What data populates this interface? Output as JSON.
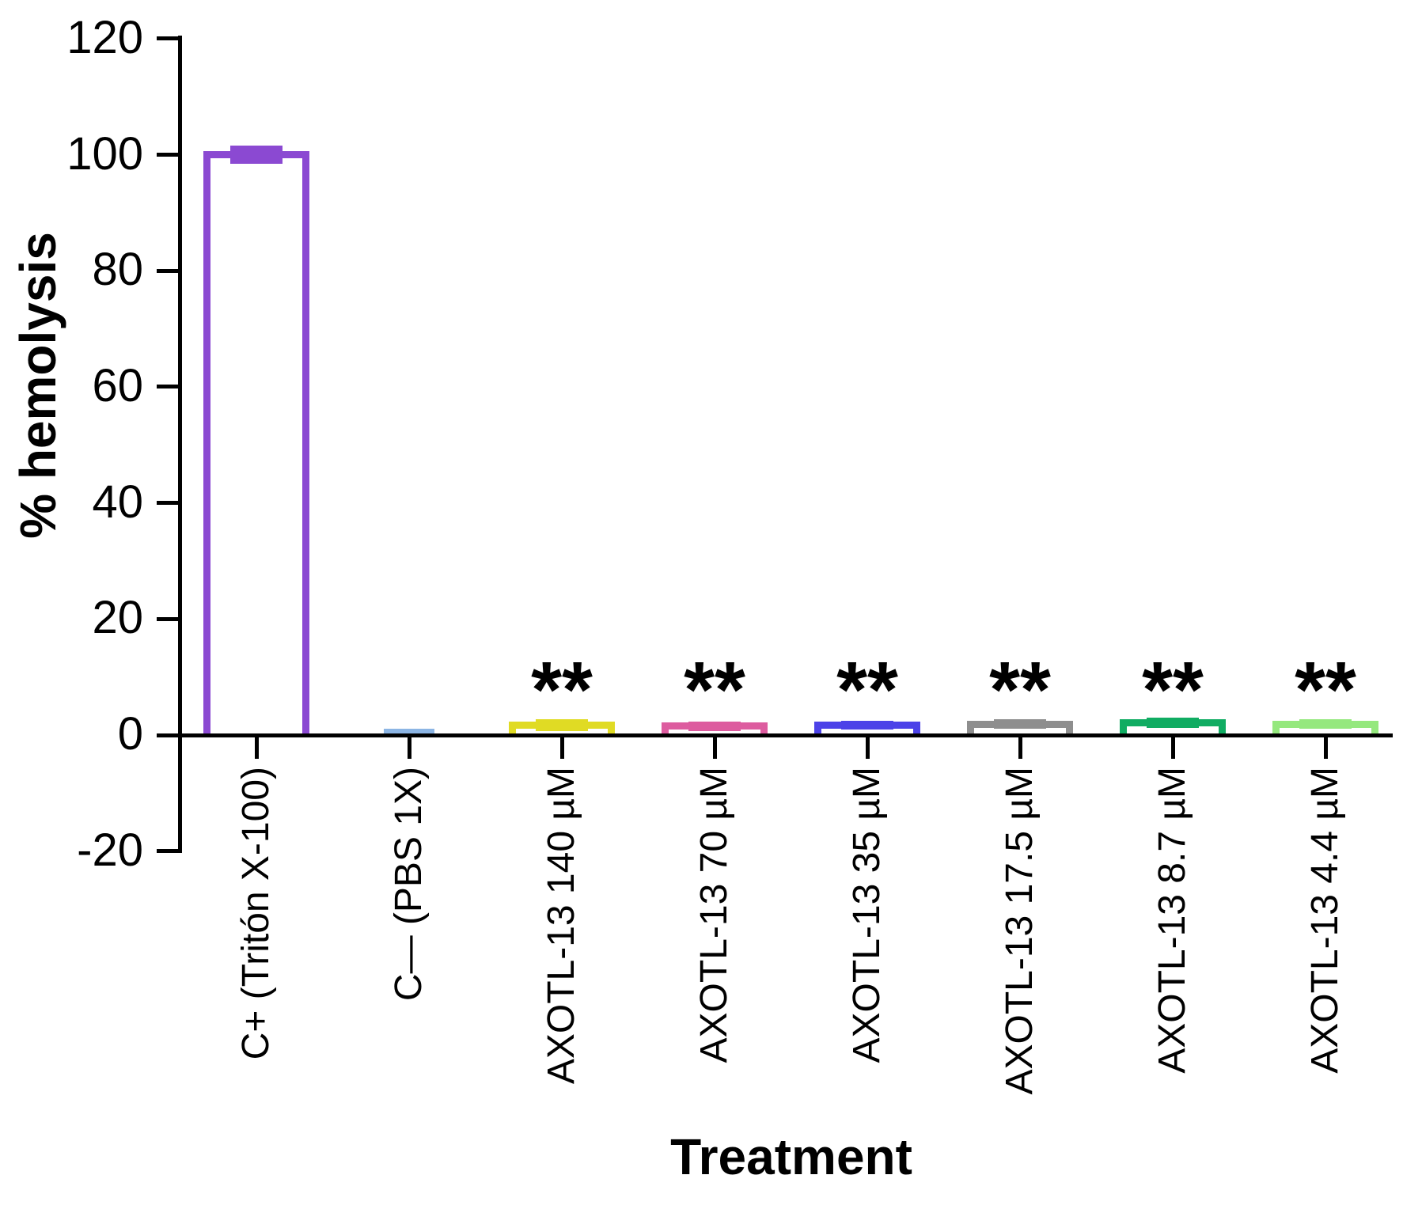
{
  "chart_data": {
    "type": "bar",
    "title": "",
    "xlabel": "Treatment",
    "ylabel": "% hemolysis",
    "ylim": [
      -20,
      120
    ],
    "yticks": [
      120,
      100,
      80,
      60,
      40,
      20,
      0,
      -20
    ],
    "grid": false,
    "legend": "none",
    "bar_style": "hollow-outline",
    "categories": [
      "C+ (Tritón X-100)",
      "C— (PBS 1X)",
      "AXOTL-13 140 µM",
      "AXOTL-13 70 µM",
      "AXOTL-13 35 µM",
      "AXOTL-13 17.5 µM",
      "AXOTL-13 8.7 µM",
      "AXOTL-13 4.4 µM"
    ],
    "values": [
      100,
      0,
      1.7,
      1.5,
      1.7,
      1.9,
      2.1,
      1.9
    ],
    "errors": [
      1.0,
      0,
      0.5,
      0.25,
      0.25,
      0.3,
      0.3,
      0.3
    ],
    "significance": [
      "",
      "",
      "**",
      "**",
      "**",
      "**",
      "**",
      "**"
    ],
    "bar_colors": [
      "#8B49D2",
      "#8CB5E4",
      "#E0DB24",
      "#DD5C9F",
      "#4C42E8",
      "#8E8E8E",
      "#10AC62",
      "#95E87E"
    ],
    "bar_fill": "#FFFFFF",
    "axis_color": "#000000"
  }
}
